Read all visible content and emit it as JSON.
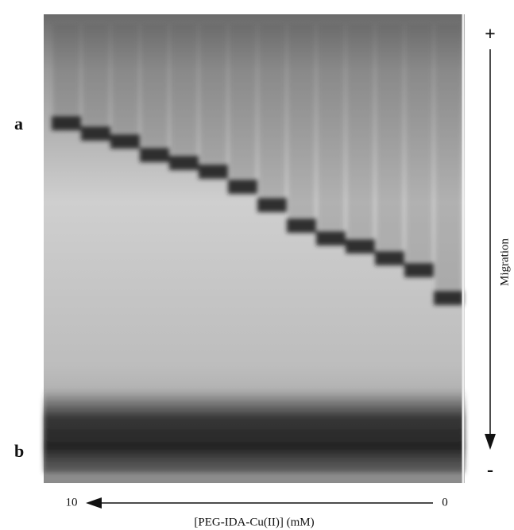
{
  "panel_labels": [
    "a",
    "b"
  ],
  "migration": {
    "top": "+",
    "bottom": "-",
    "label": "Migration"
  },
  "x_axis": {
    "left": "10",
    "right": "0",
    "label": "[PEG-IDA-Cu(II)] (mM)"
  }
}
